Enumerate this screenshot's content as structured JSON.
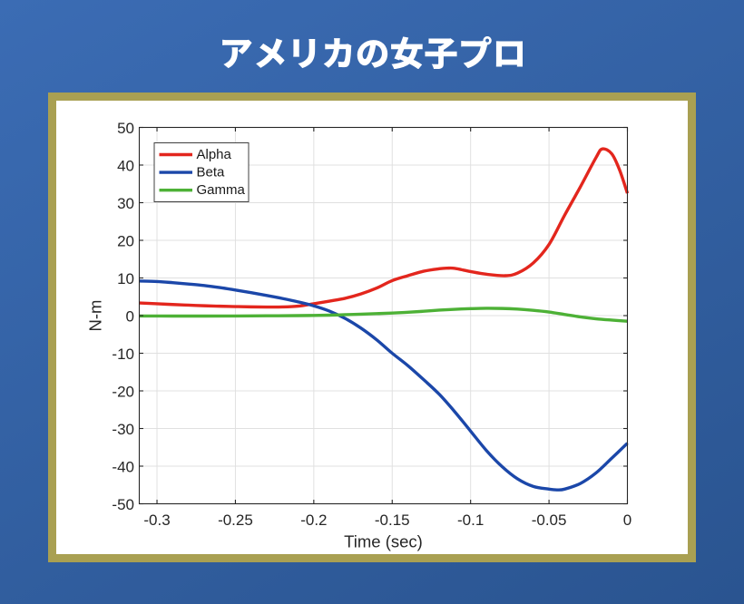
{
  "header": {
    "title": "アメリカの女子プロ"
  },
  "colors": {
    "background_top": "#3b6cb4",
    "background_bottom": "#2a5490",
    "frame_gold": "#a9a052",
    "panel_white": "#ffffff",
    "title_text": "#ffffff",
    "axis": "#262626",
    "grid": "#e0e0e0",
    "alpha_red": "#e3261d",
    "beta_blue": "#1b47a9",
    "gamma_green": "#4db136"
  },
  "chart_data": {
    "type": "line",
    "xlabel": "Time (sec)",
    "ylabel": "N-m",
    "xlim": [
      -0.3113,
      0
    ],
    "ylim": [
      -50,
      50
    ],
    "grid": true,
    "xticks": [
      -0.3,
      -0.25,
      -0.2,
      -0.15,
      -0.1,
      -0.05,
      0
    ],
    "xtick_labels": [
      "-0.3",
      "-0.25",
      "-0.2",
      "-0.15",
      "-0.1",
      "-0.05",
      "0"
    ],
    "yticks": [
      -50,
      -40,
      -30,
      -20,
      -10,
      0,
      10,
      20,
      30,
      40,
      50
    ],
    "ytick_labels": [
      "-50",
      "-40",
      "-30",
      "-20",
      "-10",
      "0",
      "10",
      "20",
      "30",
      "40",
      "50"
    ],
    "legend": {
      "position": "top-left",
      "entries": [
        "Alpha",
        "Beta",
        "Gamma"
      ]
    },
    "series": [
      {
        "name": "Alpha",
        "color": "#e3261d",
        "points": [
          [
            -0.3113,
            3.35
          ],
          [
            -0.3,
            3.15
          ],
          [
            -0.29,
            2.95
          ],
          [
            -0.28,
            2.78
          ],
          [
            -0.27,
            2.62
          ],
          [
            -0.26,
            2.5
          ],
          [
            -0.25,
            2.4
          ],
          [
            -0.24,
            2.32
          ],
          [
            -0.23,
            2.28
          ],
          [
            -0.22,
            2.3
          ],
          [
            -0.21,
            2.52
          ],
          [
            -0.2,
            3.15
          ],
          [
            -0.19,
            3.85
          ],
          [
            -0.18,
            4.6
          ],
          [
            -0.17,
            5.75
          ],
          [
            -0.16,
            7.3
          ],
          [
            -0.15,
            9.3
          ],
          [
            -0.14,
            10.6
          ],
          [
            -0.13,
            11.8
          ],
          [
            -0.12,
            12.45
          ],
          [
            -0.115,
            12.6
          ],
          [
            -0.11,
            12.55
          ],
          [
            -0.1,
            11.7
          ],
          [
            -0.09,
            11.0
          ],
          [
            -0.078,
            10.6
          ],
          [
            -0.07,
            11.3
          ],
          [
            -0.06,
            14.0
          ],
          [
            -0.05,
            18.9
          ],
          [
            -0.04,
            26.7
          ],
          [
            -0.03,
            34.2
          ],
          [
            -0.02,
            42.0
          ],
          [
            -0.016,
            44.3
          ],
          [
            -0.01,
            43.0
          ],
          [
            -0.005,
            38.7
          ],
          [
            0,
            32.5
          ]
        ]
      },
      {
        "name": "Beta",
        "color": "#1b47a9",
        "points": [
          [
            -0.3113,
            9.2
          ],
          [
            -0.3,
            9.05
          ],
          [
            -0.29,
            8.75
          ],
          [
            -0.28,
            8.4
          ],
          [
            -0.27,
            8.0
          ],
          [
            -0.26,
            7.45
          ],
          [
            -0.25,
            6.8
          ],
          [
            -0.24,
            6.1
          ],
          [
            -0.23,
            5.35
          ],
          [
            -0.22,
            4.55
          ],
          [
            -0.21,
            3.65
          ],
          [
            -0.2,
            2.6
          ],
          [
            -0.19,
            1.2
          ],
          [
            -0.18,
            -0.75
          ],
          [
            -0.17,
            -3.3
          ],
          [
            -0.16,
            -6.4
          ],
          [
            -0.15,
            -10.0
          ],
          [
            -0.14,
            -13.3
          ],
          [
            -0.13,
            -17.0
          ],
          [
            -0.12,
            -20.9
          ],
          [
            -0.11,
            -25.6
          ],
          [
            -0.1,
            -30.7
          ],
          [
            -0.09,
            -35.8
          ],
          [
            -0.08,
            -40.1
          ],
          [
            -0.07,
            -43.4
          ],
          [
            -0.06,
            -45.4
          ],
          [
            -0.05,
            -46.1
          ],
          [
            -0.045,
            -46.3
          ],
          [
            -0.04,
            -46.1
          ],
          [
            -0.03,
            -44.6
          ],
          [
            -0.02,
            -41.8
          ],
          [
            -0.01,
            -37.9
          ],
          [
            0,
            -33.9
          ]
        ]
      },
      {
        "name": "Gamma",
        "color": "#4db136",
        "points": [
          [
            -0.3113,
            -0.1
          ],
          [
            -0.29,
            -0.12
          ],
          [
            -0.27,
            -0.12
          ],
          [
            -0.25,
            -0.1
          ],
          [
            -0.23,
            -0.05
          ],
          [
            -0.21,
            0.0
          ],
          [
            -0.2,
            0.05
          ],
          [
            -0.19,
            0.12
          ],
          [
            -0.18,
            0.25
          ],
          [
            -0.17,
            0.38
          ],
          [
            -0.16,
            0.52
          ],
          [
            -0.15,
            0.68
          ],
          [
            -0.14,
            0.88
          ],
          [
            -0.13,
            1.15
          ],
          [
            -0.12,
            1.45
          ],
          [
            -0.11,
            1.68
          ],
          [
            -0.1,
            1.85
          ],
          [
            -0.09,
            1.95
          ],
          [
            -0.08,
            1.9
          ],
          [
            -0.07,
            1.72
          ],
          [
            -0.06,
            1.4
          ],
          [
            -0.05,
            0.95
          ],
          [
            -0.04,
            0.3
          ],
          [
            -0.03,
            -0.35
          ],
          [
            -0.02,
            -0.85
          ],
          [
            -0.01,
            -1.2
          ],
          [
            0,
            -1.5
          ]
        ]
      }
    ]
  }
}
